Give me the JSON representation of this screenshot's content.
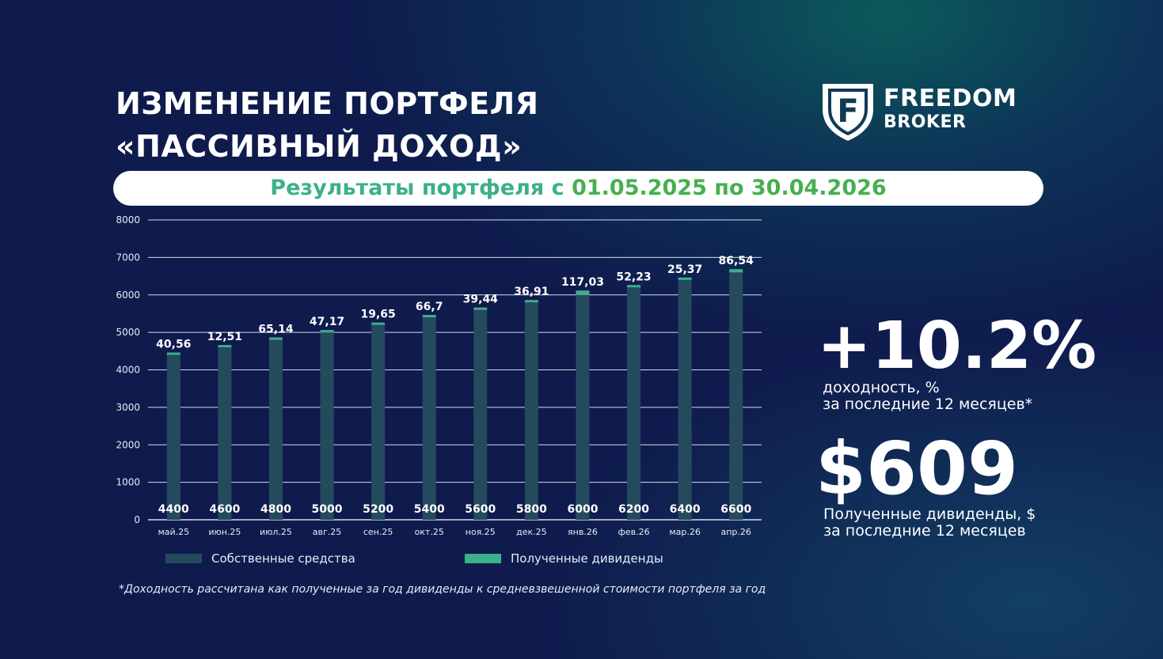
{
  "header": {
    "title_line1": "ИЗМЕНЕНИЕ ПОРТФЕЛЯ",
    "title_line2": "«ПАССИВНЫЙ ДОХОД»"
  },
  "logo": {
    "line1": "FREEDOM",
    "line2": "BROKER",
    "icon": "freedom-shield-icon",
    "mark_letter": "F"
  },
  "period": {
    "prefix": "Результаты портфеля с ",
    "dates": "01.05.2025 по 30.04.2026"
  },
  "kpis": {
    "yield_value": "+10.2%",
    "yield_caption_1": "доходность, %",
    "yield_caption_2": "за последние 12 месяцев*",
    "dividends_value": "$609",
    "dividends_caption_1": "Полученные дивиденды, $",
    "dividends_caption_2": "за последние 12 месяцев"
  },
  "footnote": "*Доходность рассчитана как полученные за год дивиденды к средневзвешенной стоимости портфеля за год",
  "colors": {
    "own_funds": "#254a5e",
    "dividends": "#3cb08a",
    "grid": "#d8dde8",
    "accent_teal": "#3cb08a",
    "accent_green": "#45b04f"
  },
  "chart_data": {
    "type": "bar",
    "stacked": true,
    "categories": [
      "май.25",
      "июн.25",
      "июл.25",
      "авг.25",
      "сен.25",
      "окт.25",
      "ноя.25",
      "дек.25",
      "янв.26",
      "фев.26",
      "мар.26",
      "апр.26"
    ],
    "series": [
      {
        "name": "Собственные средства",
        "values": [
          4400,
          4600,
          4800,
          5000,
          5200,
          5400,
          5600,
          5800,
          6000,
          6200,
          6400,
          6600
        ]
      },
      {
        "name": "Полученные дивиденды",
        "values": [
          40.56,
          12.51,
          65.14,
          47.17,
          19.65,
          66.7,
          39.44,
          36.91,
          117.03,
          52.23,
          25.37,
          86.54
        ]
      }
    ],
    "own_labels": [
      "4400",
      "4600",
      "4800",
      "5000",
      "5200",
      "5400",
      "5600",
      "5800",
      "6000",
      "6200",
      "6400",
      "6600"
    ],
    "dividend_labels": [
      "40,56",
      "12,51",
      "65,14",
      "47,17",
      "19,65",
      "66,7",
      "39,44",
      "36,91",
      "117,03",
      "52,23",
      "25,37",
      "86,54"
    ],
    "y_ticks": [
      0,
      1000,
      2000,
      3000,
      4000,
      5000,
      6000,
      7000,
      8000
    ],
    "ylim": [
      0,
      8000
    ],
    "grid": true,
    "legend": "bottom",
    "title": "",
    "xlabel": "",
    "ylabel": ""
  }
}
